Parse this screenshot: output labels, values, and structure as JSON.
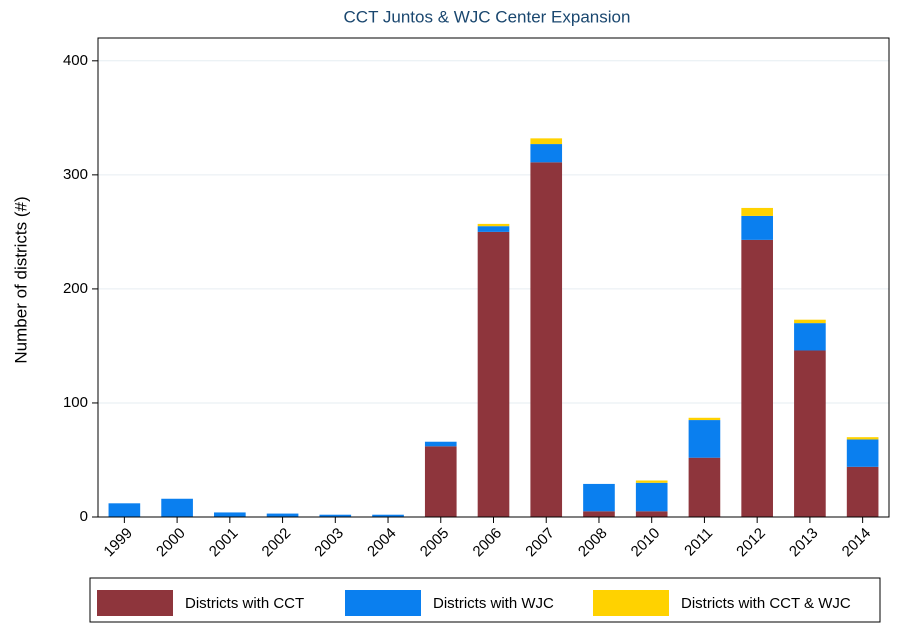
{
  "chart_data": {
    "type": "bar",
    "stacked": true,
    "title": "CCT Juntos & WJC Center Expansion",
    "y_label": "Number of districts (#)",
    "categories": [
      "1999",
      "2000",
      "2001",
      "2002",
      "2003",
      "2004",
      "2005",
      "2006",
      "2007",
      "2008",
      "2010",
      "2011",
      "2012",
      "2013",
      "2014"
    ],
    "series": [
      {
        "name": "Districts with CCT",
        "color": "#8e353c",
        "values": [
          0,
          0,
          0,
          0,
          0,
          0,
          62,
          250,
          311,
          5,
          5,
          52,
          243,
          146,
          44
        ]
      },
      {
        "name": "Districts with WJC",
        "color": "#0a7fef",
        "values": [
          12,
          16,
          4,
          3,
          2,
          2,
          4,
          5,
          16,
          24,
          25,
          33,
          21,
          24,
          24
        ]
      },
      {
        "name": "Districts with CCT & WJC",
        "color": "#ffd200",
        "values": [
          0,
          0,
          0,
          0,
          0,
          0,
          0,
          2,
          5,
          0,
          2,
          2,
          7,
          3,
          2
        ]
      }
    ],
    "ylim": [
      0,
      420
    ],
    "yticks": [
      0,
      100,
      200,
      300,
      400
    ],
    "grid": true,
    "legend": "bottom"
  }
}
